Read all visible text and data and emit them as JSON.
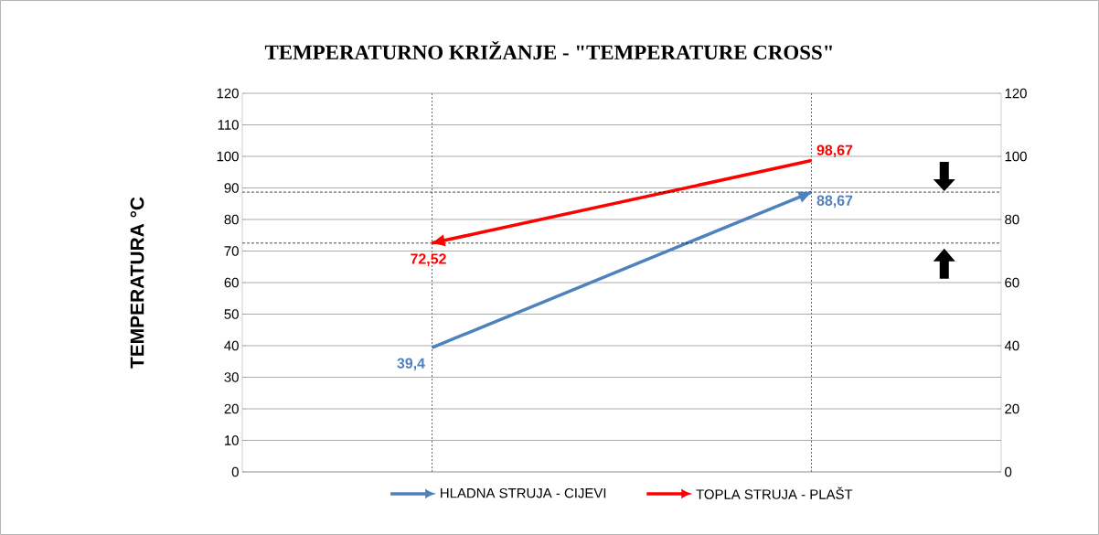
{
  "chart_data": {
    "type": "line",
    "title": "TEMPERATURNO KRIŽANJE - \"TEMPERATURE CROSS\"",
    "ylabel": "TEMPERATURA °C",
    "categories": [
      null,
      null
    ],
    "ylim": [
      0,
      120
    ],
    "yticks": [
      0,
      10,
      20,
      30,
      40,
      50,
      60,
      70,
      80,
      90,
      100,
      110,
      120
    ],
    "y2lim": [
      0,
      120
    ],
    "y2ticks": [
      0,
      20,
      40,
      60,
      80,
      100,
      120
    ],
    "grid": true,
    "legend": "bottom",
    "marker": "none",
    "line_style": "solid",
    "series": [
      {
        "name": "HLADNA STRUJA - CIJEVI",
        "color": "#4f81bd",
        "values": [
          39.4,
          88.67
        ],
        "value_labels": [
          "39,4",
          "88,67"
        ]
      },
      {
        "name": "TOPLA STRUJA - PLAŠT",
        "color": "#ff0000",
        "values": [
          72.52,
          98.67
        ],
        "value_labels": [
          "72,52",
          "98,67"
        ]
      }
    ],
    "ref_lines": [
      {
        "axis": "y",
        "value": 88.67,
        "color": "#000000",
        "line_style": "dashed"
      },
      {
        "axis": "y",
        "value": 72.52,
        "color": "#000000",
        "line_style": "dashed"
      }
    ]
  }
}
